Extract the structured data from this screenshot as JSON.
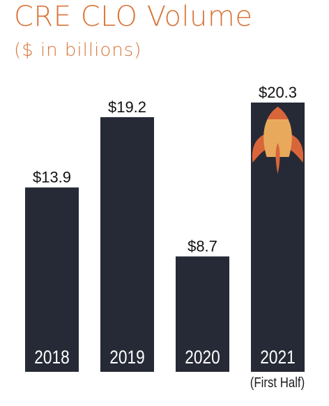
{
  "chart_data": {
    "type": "bar",
    "title": "CRE CLO Volume",
    "subtitle": "($ in billions)",
    "categories": [
      "2018",
      "2019",
      "2020",
      "2021"
    ],
    "values": [
      13.9,
      19.2,
      8.7,
      20.3
    ],
    "data_labels": [
      "$13.9",
      "$19.2",
      "$8.7",
      "$20.3"
    ],
    "category_notes": [
      "",
      "",
      "",
      "(First Half)"
    ],
    "xlabel": "",
    "ylabel": "",
    "ylim": [
      0,
      20.3
    ],
    "grid": false,
    "legend": "none",
    "colors": {
      "bar": "#262a36",
      "title": "#d9763a",
      "bar_label": "#ffffff",
      "value_label": "#111111",
      "rocket_body": "#e9a95c",
      "rocket_accent": "#d9663a"
    },
    "icons": [
      "rocket-icon"
    ]
  }
}
